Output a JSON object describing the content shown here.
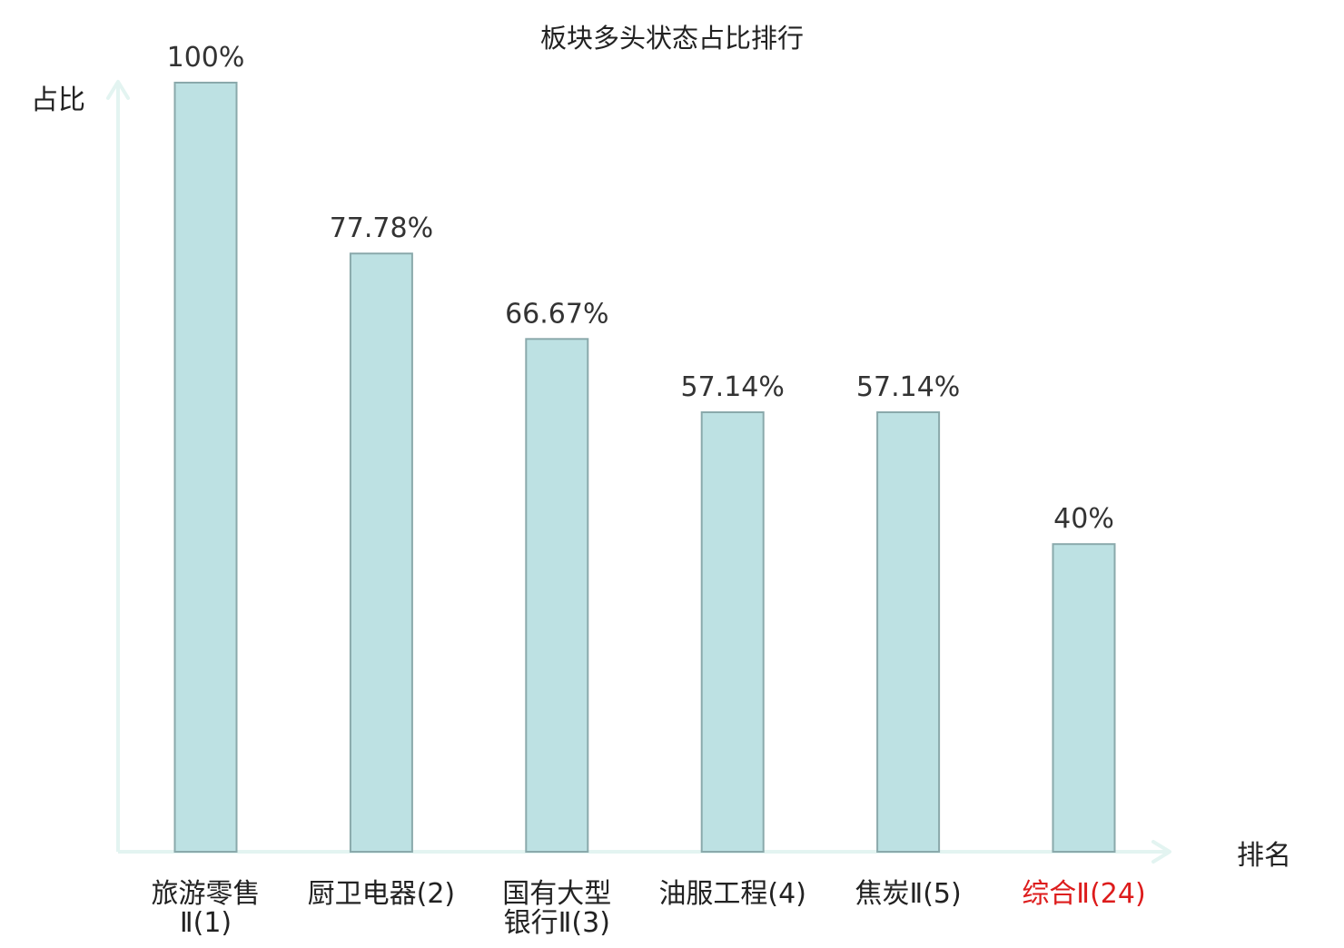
{
  "chart_data": {
    "type": "bar",
    "title": "板块多头状态占比排行",
    "ylabel": "占比",
    "xlabel": "排名",
    "ylim": [
      0,
      100
    ],
    "grid": false,
    "legend": "none",
    "categories": [
      {
        "name": "旅游零售",
        "rank": "Ⅱ(1)",
        "name_line2": "",
        "highlight": false
      },
      {
        "name": "厨卫电器",
        "rank": "(2)",
        "name_line2": "",
        "highlight": false
      },
      {
        "name": "国有大型",
        "rank": "Ⅱ(3)",
        "name_line2": "银行",
        "highlight": false
      },
      {
        "name": "油服工程",
        "rank": "(4)",
        "name_line2": "",
        "highlight": false
      },
      {
        "name": "焦炭",
        "rank": "Ⅱ(5)",
        "name_line2": "",
        "highlight": false
      },
      {
        "name": "综合",
        "rank": "Ⅱ(24)",
        "name_line2": "",
        "highlight": true
      }
    ],
    "values": [
      100,
      77.78,
      66.67,
      57.14,
      57.14,
      40
    ],
    "value_labels": [
      "100%",
      "77.78%",
      "66.67%",
      "57.14%",
      "57.14%",
      "40%"
    ],
    "colors": {
      "bar_fill": "#bde1e3",
      "bar_stroke": "#8aa9ab",
      "axis": "#e3f4f1",
      "text": "#333333",
      "label_text": "#222222",
      "highlight": "#dd1c1c"
    }
  }
}
